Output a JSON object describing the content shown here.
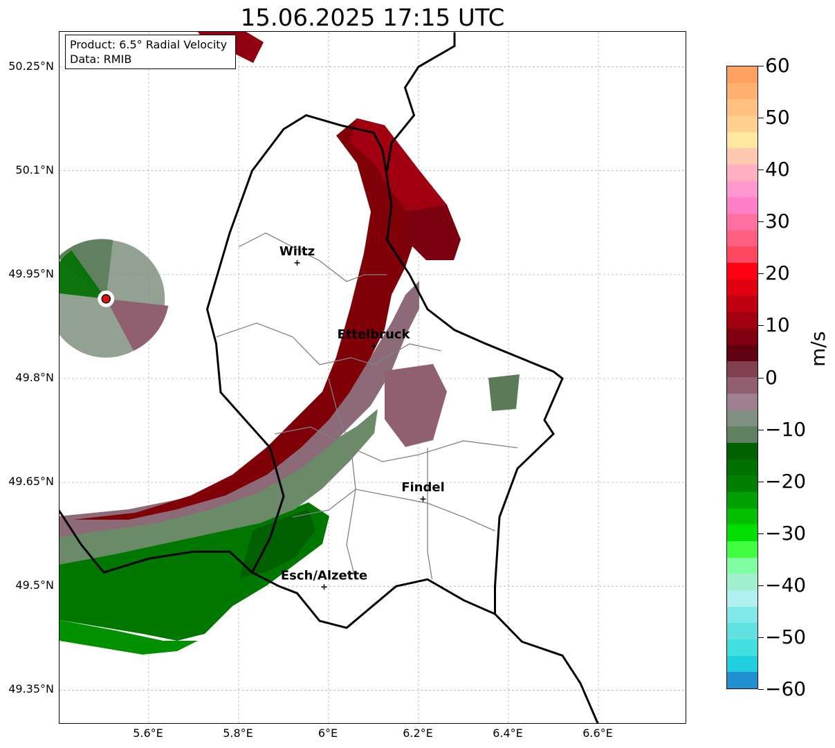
{
  "title": "15.06.2025 17:15 UTC",
  "info": {
    "product": "Product: 6.5° Radial Velocity",
    "data": "Data: RMIB"
  },
  "lat_ticks": [
    "50.25°N",
    "50.1°N",
    "49.95°N",
    "49.8°N",
    "49.65°N",
    "49.5°N",
    "49.35°N"
  ],
  "lon_ticks": [
    "5.6°E",
    "5.8°E",
    "6°E",
    "6.2°E",
    "6.4°E",
    "6.6°E"
  ],
  "cities": [
    {
      "name": "Wiltz",
      "lon": 5.93,
      "lat": 49.967
    },
    {
      "name": "Ettelbruck",
      "lon": 6.1,
      "lat": 49.847
    },
    {
      "name": "Findel",
      "lon": 6.21,
      "lat": 49.626
    },
    {
      "name": "Esch/Alzette",
      "lon": 5.99,
      "lat": 49.499
    }
  ],
  "radar_site": {
    "lon": 5.505,
    "lat": 49.915
  },
  "colorbar": {
    "unit": "m/s",
    "min": -60,
    "max": 60,
    "ticks": [
      "60",
      "50",
      "40",
      "30",
      "20",
      "10",
      "0",
      "−10",
      "−20",
      "−30",
      "−40",
      "−50",
      "−60"
    ],
    "colors_top_to_bottom": [
      "#ffa060",
      "#ffb070",
      "#ffc080",
      "#ffd090",
      "#ffe8a0",
      "#ffc8b0",
      "#ffb0c0",
      "#ff98d0",
      "#ff80c8",
      "#ff70a0",
      "#ff6080",
      "#ff4860",
      "#ff0010",
      "#e00010",
      "#c00010",
      "#a00010",
      "#800010",
      "#600010",
      "#804050",
      "#906070",
      "#a08090",
      "#809080",
      "#608060",
      "#006000",
      "#007000",
      "#008000",
      "#00a000",
      "#00c000",
      "#00e000",
      "#40ff40",
      "#80ffa0",
      "#a0f0d0",
      "#b0f0f0",
      "#80e8e8",
      "#60e0e0",
      "#40e0e0",
      "#20d0e0",
      "#2090d0"
    ]
  }
}
